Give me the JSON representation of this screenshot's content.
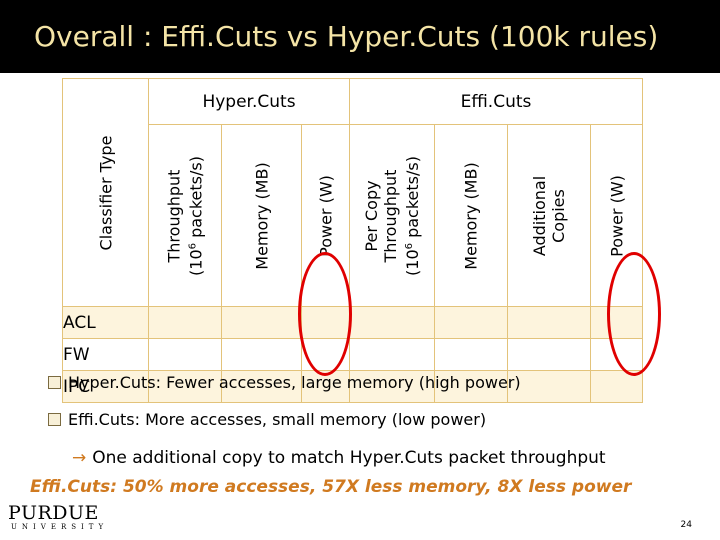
{
  "slide": {
    "title": "Overall : Effi.Cuts vs Hyper.Cuts (100k rules)",
    "page_number": "24"
  },
  "table": {
    "corner_label": "Classifier Type",
    "groups": [
      {
        "label": "Hyper.Cuts",
        "colspan": 3
      },
      {
        "label": "Effi.Cuts",
        "colspan": 4
      }
    ],
    "columns": [
      {
        "line1": "Throughput",
        "line2_prefix": "(10",
        "line2_sup": "6",
        "line2_suffix": " packets/s)"
      },
      {
        "line1": "Memory (MB)"
      },
      {
        "line1": "Power (W)"
      },
      {
        "line1": "Per Copy",
        "line1b": "Throughput",
        "line2_prefix": "(10",
        "line2_sup": "6",
        "line2_suffix": " packets/s)"
      },
      {
        "line1": "Memory (MB)"
      },
      {
        "line1": "Additional",
        "line1b": "Copies"
      },
      {
        "line1": "Power (W)"
      }
    ],
    "rows": [
      {
        "label": "ACL"
      },
      {
        "label": "FW"
      },
      {
        "label": "IPC"
      }
    ],
    "highlight_color": "#e00000"
  },
  "bullets": [
    {
      "text": "Hyper.Cuts: Fewer accesses, large memory (high power)"
    },
    {
      "text": "Effi.Cuts: More accesses, small memory (low power)"
    }
  ],
  "arrow_line": {
    "icon": "arrow-right-icon",
    "text": "One additional copy to match Hyper.Cuts packet throughput"
  },
  "summary": "Effi.Cuts: 50% more accesses, 57X less memory, 8X less power",
  "logo": {
    "main": "PURDUE",
    "sub": "UNIVERSITY"
  },
  "colors": {
    "title_text": "#f4e4a6",
    "title_bg": "#000000",
    "accent": "#d07a20",
    "grid": "#e3c37a",
    "row_band": "#fdf4dd"
  }
}
